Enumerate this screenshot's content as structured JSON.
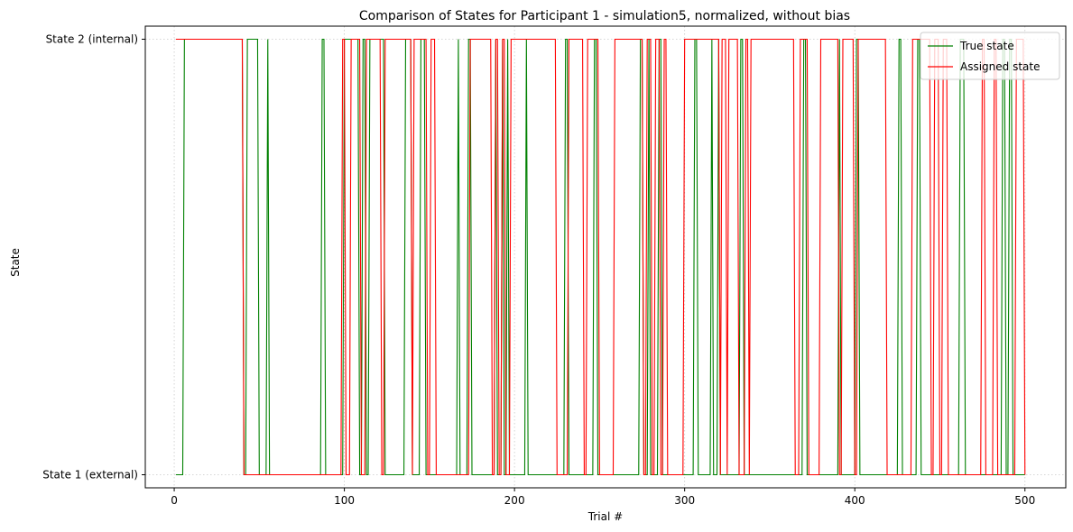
{
  "chart_data": {
    "type": "line",
    "title": "Comparison of States for Participant 1 - simulation5, normalized, without bias",
    "xlabel": "Trial #",
    "ylabel": "State",
    "xlim": [
      -17,
      524
    ],
    "ylim": [
      0.97,
      2.03
    ],
    "xticks": [
      0,
      100,
      200,
      300,
      400,
      500
    ],
    "yticks": [
      {
        "value": 1,
        "label": "State 1 (external)"
      },
      {
        "value": 2,
        "label": "State 2 (internal)"
      }
    ],
    "grid": true,
    "legend_position": "top-right",
    "series": [
      {
        "name": "True state",
        "color": "#008000",
        "x_start": 1,
        "x_end": 500,
        "initial_value": 1,
        "change_points": [
          6,
          41,
          43,
          50,
          55,
          56,
          87,
          89,
          100,
          109,
          111,
          113,
          115,
          124,
          136,
          140,
          145,
          148,
          167,
          168,
          173,
          175,
          189,
          190,
          193,
          194,
          196,
          197,
          207,
          208,
          230,
          232,
          247,
          249,
          274,
          276,
          279,
          280,
          285,
          287,
          306,
          308,
          316,
          317,
          320,
          321,
          333,
          335,
          370,
          372,
          391,
          392,
          401,
          403,
          426,
          428,
          437,
          439,
          462,
          465,
          487,
          489,
          491,
          493
        ],
        "change_values": [
          2,
          1,
          2,
          1,
          2,
          1,
          2,
          1,
          2,
          1,
          2,
          1,
          2,
          1,
          2,
          1,
          2,
          1,
          2,
          1,
          2,
          1,
          2,
          1,
          2,
          1,
          2,
          1,
          2,
          1,
          2,
          1,
          2,
          1,
          2,
          1,
          2,
          1,
          2,
          1,
          2,
          1,
          2,
          1,
          2,
          1,
          2,
          1,
          2,
          1,
          2,
          1,
          2,
          1,
          2,
          1,
          2,
          1,
          2,
          1,
          2,
          1,
          2,
          1
        ]
      },
      {
        "name": "Assigned state",
        "color": "#ff0000",
        "x_start": 1,
        "x_end": 500,
        "initial_value": 2,
        "change_points": [
          41,
          99,
          101,
          104,
          110,
          113,
          122,
          124,
          140,
          141,
          149,
          151,
          154,
          174,
          187,
          189,
          191,
          193,
          195,
          198,
          225,
          232,
          241,
          243,
          250,
          259,
          276,
          278,
          281,
          283,
          286,
          288,
          290,
          300,
          321,
          322,
          325,
          326,
          332,
          336,
          338,
          339,
          365,
          368,
          373,
          380,
          391,
          393,
          400,
          402,
          419,
          434,
          445,
          447,
          450,
          452,
          455,
          475,
          477,
          482,
          484,
          495,
          500
        ],
        "change_values": [
          1,
          2,
          1,
          2,
          1,
          2,
          1,
          2,
          1,
          2,
          1,
          2,
          1,
          2,
          1,
          2,
          1,
          2,
          1,
          2,
          1,
          2,
          1,
          2,
          1,
          2,
          1,
          2,
          1,
          2,
          1,
          2,
          1,
          2,
          1,
          2,
          1,
          2,
          1,
          2,
          1,
          2,
          1,
          2,
          1,
          2,
          1,
          2,
          1,
          2,
          1,
          2,
          1,
          2,
          1,
          2,
          1,
          2,
          1,
          2,
          1,
          2,
          1
        ]
      }
    ]
  }
}
